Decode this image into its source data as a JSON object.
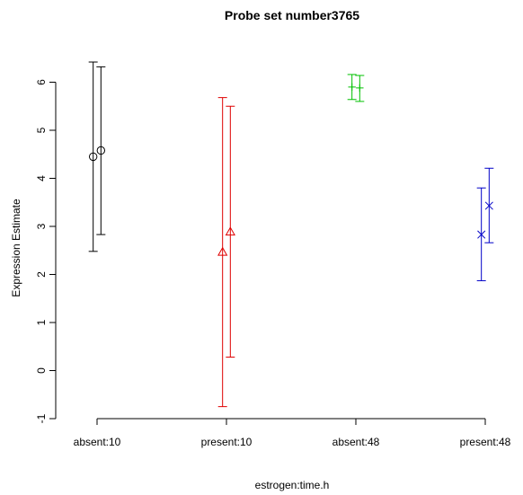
{
  "chart_data": {
    "type": "scatter",
    "title": "Probe set number3765",
    "xlabel": "estrogen:time.h",
    "ylabel": "Expression Estimate",
    "categories": [
      "absent:10",
      "present:10",
      "absent:48",
      "present:48"
    ],
    "ylim": [
      -1,
      6.5
    ],
    "yticks": [
      -1,
      0,
      1,
      2,
      3,
      4,
      5,
      6
    ],
    "ytick_labels": [
      "-1",
      "0",
      "1",
      "2",
      "3",
      "4",
      "5",
      "6"
    ],
    "grid": false,
    "legend": "none",
    "groups": [
      {
        "category": "absent:10",
        "color": "#000000",
        "marker": "circle",
        "points": [
          {
            "x_offset": -0.03,
            "y": 4.45,
            "low": 2.48,
            "high": 6.42
          },
          {
            "x_offset": 0.03,
            "y": 4.58,
            "low": 2.83,
            "high": 6.32
          }
        ]
      },
      {
        "category": "present:10",
        "color": "#df0000",
        "marker": "triangle",
        "points": [
          {
            "x_offset": -0.03,
            "y": 2.46,
            "low": -0.75,
            "high": 5.68
          },
          {
            "x_offset": 0.03,
            "y": 2.88,
            "low": 0.28,
            "high": 5.5
          }
        ]
      },
      {
        "category": "absent:48",
        "color": "#00c000",
        "marker": "plus",
        "points": [
          {
            "x_offset": -0.03,
            "y": 5.9,
            "low": 5.64,
            "high": 6.16
          },
          {
            "x_offset": 0.03,
            "y": 5.88,
            "low": 5.6,
            "high": 6.14
          }
        ]
      },
      {
        "category": "present:48",
        "color": "#0000c8",
        "marker": "x",
        "points": [
          {
            "x_offset": -0.03,
            "y": 2.83,
            "low": 1.87,
            "high": 3.8
          },
          {
            "x_offset": 0.03,
            "y": 3.43,
            "low": 2.66,
            "high": 4.21
          }
        ]
      }
    ]
  }
}
